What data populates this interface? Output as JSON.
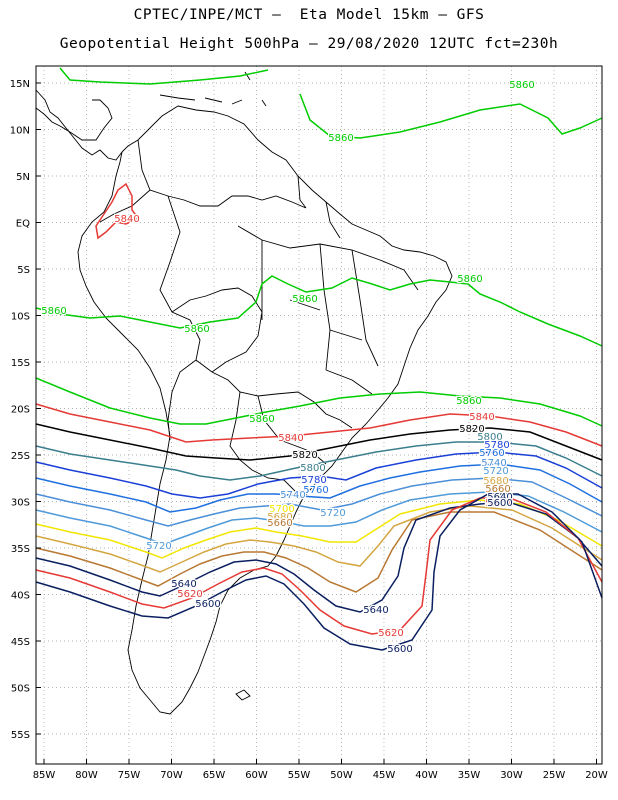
{
  "header": {
    "title_line1": "CPTEC/INPE/MCT –  Eta Model 15km – GFS",
    "title_line2": "Geopotential Height 500hPa – 29/08/2020 12UTC fct=230h"
  },
  "axes": {
    "lat_labels": [
      "15N",
      "10N",
      "5N",
      "EQ",
      "5S",
      "10S",
      "15S",
      "20S",
      "25S",
      "30S",
      "35S",
      "40S",
      "45S",
      "50S",
      "55S"
    ],
    "lon_labels": [
      "85W",
      "80W",
      "75W",
      "70W",
      "65W",
      "60W",
      "55W",
      "50W",
      "45W",
      "40W",
      "35W",
      "30W",
      "25W",
      "20W"
    ]
  },
  "colors": {
    "5860": "#00cc00",
    "5840": "#e53935",
    "5820": "#000000",
    "5800": "#3a7d8c",
    "5780": "#1a3fd6",
    "5760": "#1f6fe0",
    "5740": "#4a8fd8",
    "5720": "#4f9ad8",
    "5700": "#f2e600",
    "5680": "#d4a642",
    "5660": "#b87832",
    "5640": "#0a1f60",
    "5620": "#e53935",
    "5600": "#0a1f60",
    "grid": "#9a9a9a",
    "coast": "#000000"
  },
  "contour_labels": [
    {
      "text": "5860",
      "level": "5860"
    },
    {
      "text": "5860",
      "level": "5860"
    },
    {
      "text": "5840",
      "level": "5840"
    },
    {
      "text": "5860",
      "level": "5860"
    },
    {
      "text": "5860",
      "level": "5860"
    },
    {
      "text": "5860",
      "level": "5860"
    },
    {
      "text": "5860",
      "level": "5860"
    },
    {
      "text": "5860",
      "level": "5860"
    },
    {
      "text": "5860",
      "level": "5860"
    },
    {
      "text": "5840",
      "level": "5840"
    },
    {
      "text": "5840",
      "level": "5840"
    },
    {
      "text": "5820",
      "level": "5820"
    },
    {
      "text": "5820",
      "level": "5820"
    },
    {
      "text": "5800",
      "level": "5800"
    },
    {
      "text": "5800",
      "level": "5800"
    },
    {
      "text": "5780",
      "level": "5780"
    },
    {
      "text": "5780",
      "level": "5780"
    },
    {
      "text": "5760",
      "level": "5760"
    },
    {
      "text": "5760",
      "level": "5760"
    },
    {
      "text": "5740",
      "level": "5740"
    },
    {
      "text": "5740",
      "level": "5740"
    },
    {
      "text": "5720",
      "level": "5720"
    },
    {
      "text": "5720",
      "level": "5720"
    },
    {
      "text": "5720",
      "level": "5720"
    },
    {
      "text": "5700",
      "level": "5700"
    },
    {
      "text": "5680",
      "level": "5680"
    },
    {
      "text": "5680",
      "level": "5680"
    },
    {
      "text": "5660",
      "level": "5660"
    },
    {
      "text": "5660",
      "level": "5660"
    },
    {
      "text": "5640",
      "level": "5640"
    },
    {
      "text": "5640",
      "level": "5640"
    },
    {
      "text": "5640",
      "level": "5640"
    },
    {
      "text": "5620",
      "level": "5620"
    },
    {
      "text": "5620",
      "level": "5620"
    },
    {
      "text": "5620",
      "level": "5620"
    },
    {
      "text": "5600",
      "level": "5600"
    },
    {
      "text": "5600",
      "level": "5600"
    },
    {
      "text": "5600",
      "level": "5600"
    }
  ]
}
